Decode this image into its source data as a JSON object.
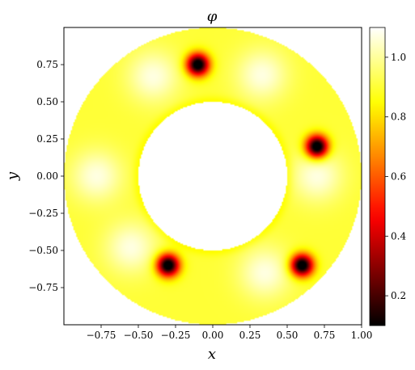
{
  "chart_data": {
    "type": "heatmap",
    "title": "φ",
    "xlabel": "x",
    "ylabel": "y",
    "xlim": [
      -1.0,
      1.0
    ],
    "ylim": [
      -1.0,
      1.0
    ],
    "x_ticks": [
      "−0.75",
      "−0.50",
      "−0.25",
      "0.00",
      "0.25",
      "0.50",
      "0.75",
      "1.00"
    ],
    "y_ticks": [
      "0.75",
      "0.50",
      "0.25",
      "0.00",
      "−0.25",
      "−0.50",
      "−0.75"
    ],
    "x_tick_values": [
      -0.75,
      -0.5,
      -0.25,
      0,
      0.25,
      0.5,
      0.75,
      1.0
    ],
    "y_tick_values": [
      0.75,
      0.5,
      0.25,
      0,
      -0.25,
      -0.5,
      -0.75
    ],
    "domain": {
      "shape": "annulus",
      "inner_radius": 0.5,
      "outer_radius": 1.0
    },
    "colormap": "hot",
    "colorbar": {
      "range": [
        0.1,
        1.1
      ],
      "ticks": [
        "0.2",
        "0.4",
        "0.6",
        "0.8",
        "1.0"
      ],
      "tick_values": [
        0.2,
        0.4,
        0.6,
        0.8,
        1.0
      ]
    },
    "vortices": [
      {
        "x": -0.1,
        "y": 0.75
      },
      {
        "x": 0.7,
        "y": 0.2
      },
      {
        "x": 0.6,
        "y": -0.6
      },
      {
        "x": -0.3,
        "y": -0.6
      }
    ],
    "background_level": 0.9,
    "bright_spots": [
      {
        "x": -0.78,
        "y": 0.0
      },
      {
        "x": 0.7,
        "y": 0.0
      },
      {
        "x": -0.4,
        "y": 0.67
      },
      {
        "x": 0.33,
        "y": 0.68
      },
      {
        "x": 0.35,
        "y": -0.65
      },
      {
        "x": -0.55,
        "y": -0.48
      }
    ]
  }
}
